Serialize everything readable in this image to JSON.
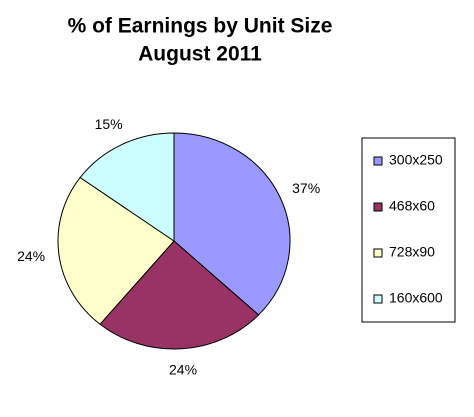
{
  "chart_data": {
    "type": "pie",
    "title": "% of Earnings by Unit Size",
    "subtitle": "August 2011",
    "categories": [
      "300x250",
      "468x60",
      "728x90",
      "160x600"
    ],
    "values": [
      37,
      24,
      24,
      15
    ],
    "value_labels": [
      "37%",
      "24%",
      "24%",
      "15%"
    ],
    "colors": [
      "#9999ff",
      "#993366",
      "#ffffcc",
      "#ccffff"
    ],
    "legend": "right"
  }
}
